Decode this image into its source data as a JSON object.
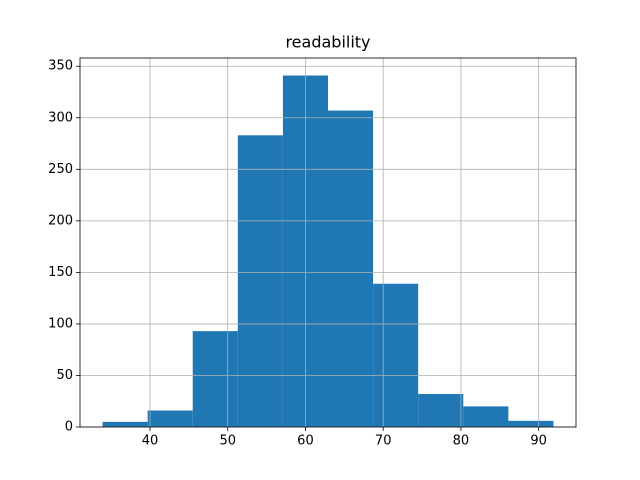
{
  "chart_data": {
    "type": "histogram",
    "title": "readability",
    "bins": [
      33.9,
      39.7,
      45.5,
      51.3,
      57.1,
      62.9,
      68.7,
      74.5,
      80.3,
      86.1,
      91.9
    ],
    "values": [
      5,
      16,
      93,
      283,
      341,
      307,
      139,
      32,
      20,
      6
    ],
    "color": "#1f77b4",
    "xlim": [
      31,
      94.8
    ],
    "xticks": [
      40,
      50,
      60,
      70,
      80,
      90
    ],
    "ylim": [
      0,
      358
    ],
    "yticks": [
      0,
      50,
      100,
      150,
      200,
      250,
      300,
      350
    ],
    "grid": true
  }
}
